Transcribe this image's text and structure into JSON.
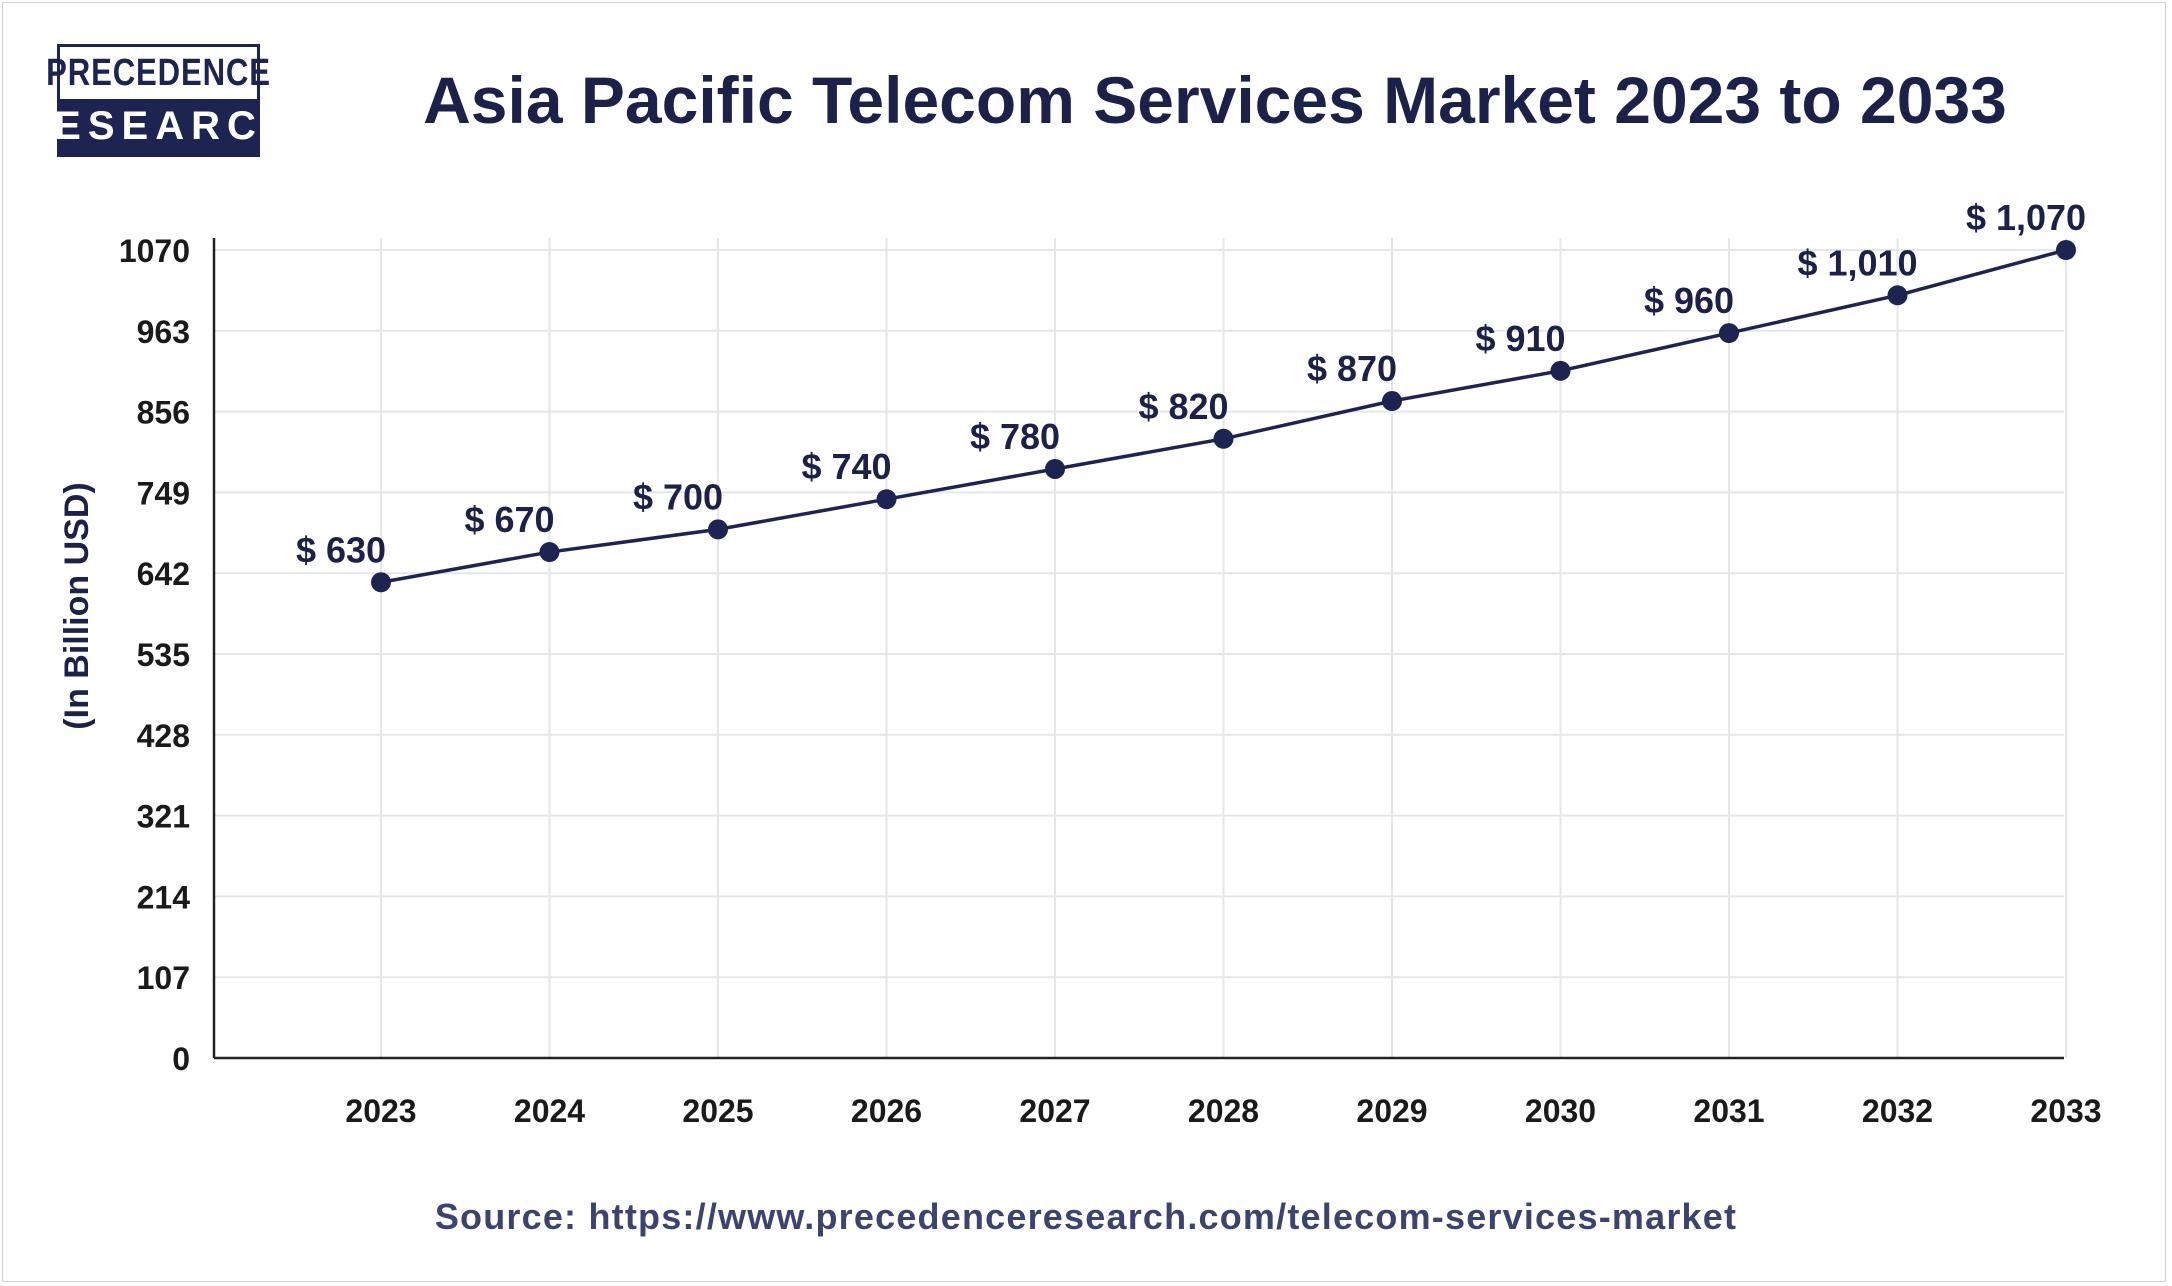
{
  "logo": {
    "line1": "PRECEDENCE",
    "line2": "RESEARCH"
  },
  "source_text": "Source: https://www.precedenceresearch.com/telecom-services-market",
  "colors": {
    "line": "#1d2452",
    "marker": "#1d2452",
    "text_dark": "#1b2149",
    "grid": "#e4e6ea",
    "axis": "#222222"
  },
  "chart_data": {
    "type": "line",
    "title": "Asia Pacific Telecom Services Market 2023 to 2033",
    "xlabel": "",
    "ylabel": "(In Billion USD)",
    "categories": [
      "2023",
      "2024",
      "2025",
      "2026",
      "2027",
      "2028",
      "2029",
      "2030",
      "2031",
      "2032",
      "2033"
    ],
    "series": [
      {
        "values": [
          630,
          670,
          700,
          740,
          780,
          820,
          870,
          910,
          960,
          1010,
          1070
        ],
        "data_labels": [
          "$ 630",
          "$ 670",
          "$ 700",
          "$ 740",
          "$ 780",
          "$ 820",
          "$ 870",
          "$ 910",
          "$ 960",
          "$ 1,010",
          "$ 1,070"
        ]
      }
    ],
    "y_ticks": [
      "0",
      "107",
      "214",
      "321",
      "428",
      "535",
      "642",
      "749",
      "856",
      "963",
      "1070"
    ],
    "ylim": [
      0,
      1070
    ],
    "grid": true,
    "legend": "none"
  }
}
